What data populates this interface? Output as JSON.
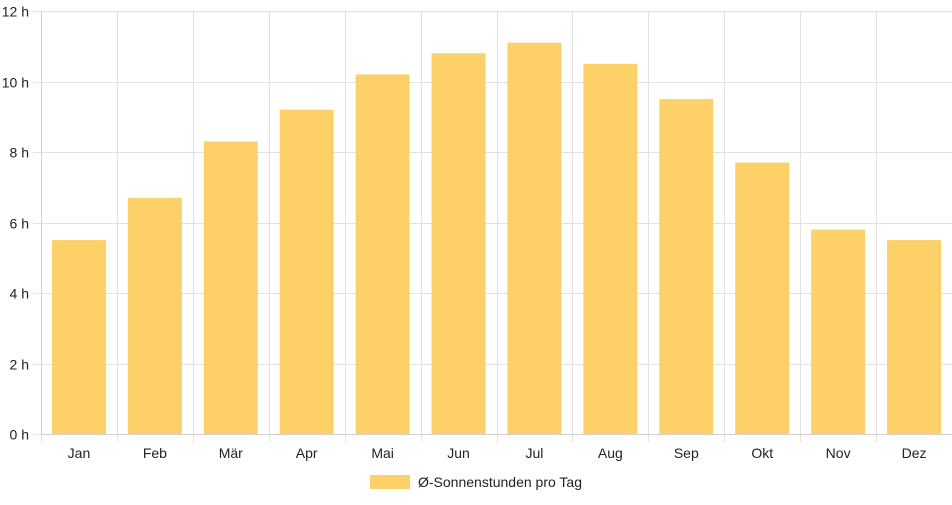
{
  "chart_data": {
    "type": "bar",
    "categories": [
      "Jan",
      "Feb",
      "Mär",
      "Apr",
      "Mai",
      "Jun",
      "Jul",
      "Aug",
      "Sep",
      "Okt",
      "Nov",
      "Dez"
    ],
    "series": [
      {
        "name": "Ø-Sonnenstunden pro Tag",
        "values": [
          5.5,
          6.7,
          8.3,
          9.2,
          10.2,
          10.8,
          11.1,
          10.5,
          9.5,
          7.7,
          5.8,
          5.5
        ],
        "color": "#fdd068"
      }
    ],
    "ylim": [
      0,
      12
    ],
    "yticks": [
      0,
      2,
      4,
      6,
      8,
      10,
      12
    ],
    "ytick_suffix": " h",
    "grid": true,
    "legend_position": "bottom-center"
  }
}
